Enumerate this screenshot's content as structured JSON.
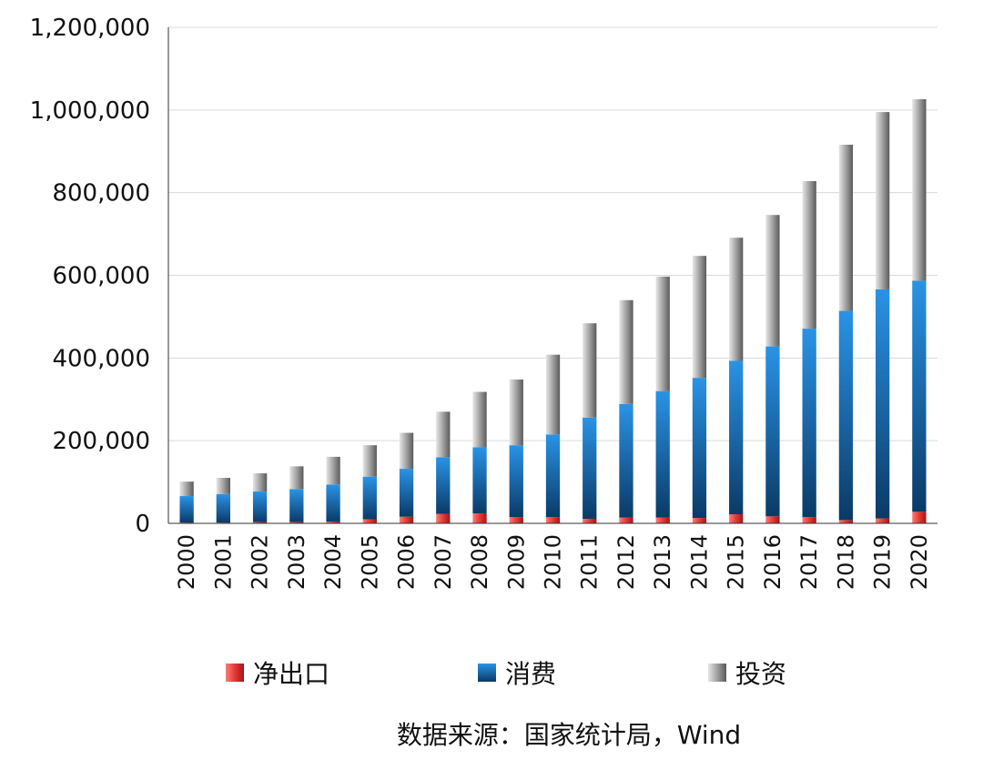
{
  "chart_data": {
    "type": "bar",
    "stacked": true,
    "categories": [
      "2000",
      "2001",
      "2002",
      "2003",
      "2004",
      "2005",
      "2006",
      "2007",
      "2008",
      "2009",
      "2010",
      "2011",
      "2012",
      "2013",
      "2014",
      "2015",
      "2016",
      "2017",
      "2018",
      "2019",
      "2020"
    ],
    "series": [
      {
        "name": "净出口",
        "color": "#e53935",
        "values": [
          2000,
          2000,
          3000,
          3000,
          4000,
          10000,
          16000,
          23000,
          24000,
          15000,
          15000,
          11000,
          14000,
          14000,
          13000,
          22000,
          17000,
          15000,
          8000,
          12000,
          28000
        ]
      },
      {
        "name": "消费",
        "color": "#1f77c4",
        "values": [
          64000,
          69000,
          74000,
          80000,
          90000,
          103000,
          116000,
          137000,
          160000,
          174000,
          200000,
          245000,
          275000,
          306000,
          339000,
          371000,
          411000,
          456000,
          506000,
          554000,
          559000
        ]
      },
      {
        "name": "投资",
        "color": "#9e9e9e",
        "values": [
          35000,
          39000,
          44000,
          55000,
          67000,
          76000,
          87000,
          110000,
          134000,
          159000,
          193000,
          228000,
          251000,
          277000,
          295000,
          298000,
          318000,
          357000,
          402000,
          429000,
          439000
        ]
      }
    ],
    "yticks": [
      "0",
      "200,000",
      "400,000",
      "600,000",
      "800,000",
      "1,000,000",
      "1,200,000"
    ],
    "ylim": [
      0,
      1200000
    ],
    "grid": true,
    "legend": "bottom",
    "xlabel": "",
    "ylabel": ""
  },
  "source": "数据来源：国家统计局，Wind"
}
